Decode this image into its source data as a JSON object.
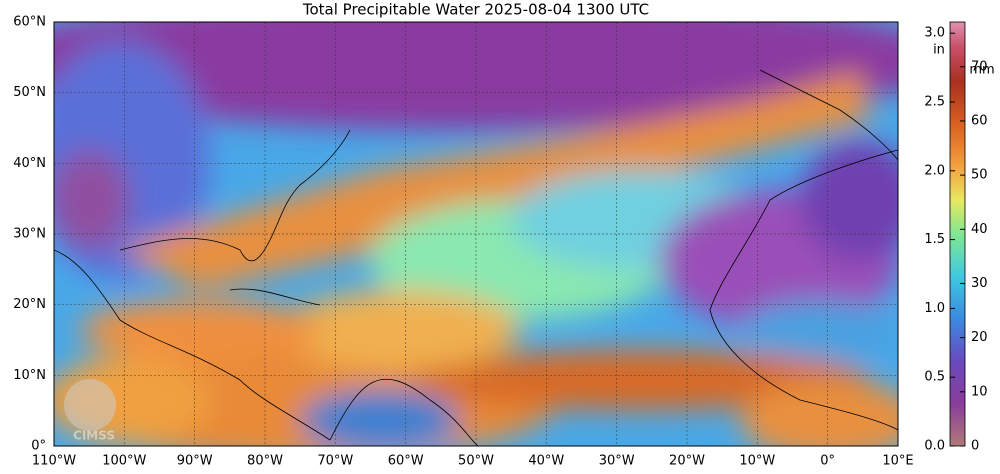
{
  "title": "Total Precipitable Water  2025-08-04 1300 UTC",
  "map": {
    "lat_labels": [
      "60°N",
      "50°N",
      "40°N",
      "30°N",
      "20°N",
      "10°N",
      "0°"
    ],
    "lon_labels": [
      "110°W",
      "100°W",
      "90°W",
      "80°W",
      "70°W",
      "60°W",
      "50°W",
      "40°W",
      "30°W",
      "20°W",
      "10°W",
      "0°",
      "10°E"
    ],
    "logo": "CIMSS"
  },
  "colorbar": {
    "inch_unit": "in",
    "mm_unit": "mm",
    "inch_ticks": [
      "0.0",
      "0.5",
      "1.0",
      "1.5",
      "2.0",
      "2.5",
      "3.0"
    ],
    "mm_ticks": [
      "0",
      "10",
      "20",
      "30",
      "40",
      "50",
      "60",
      "70"
    ]
  }
}
